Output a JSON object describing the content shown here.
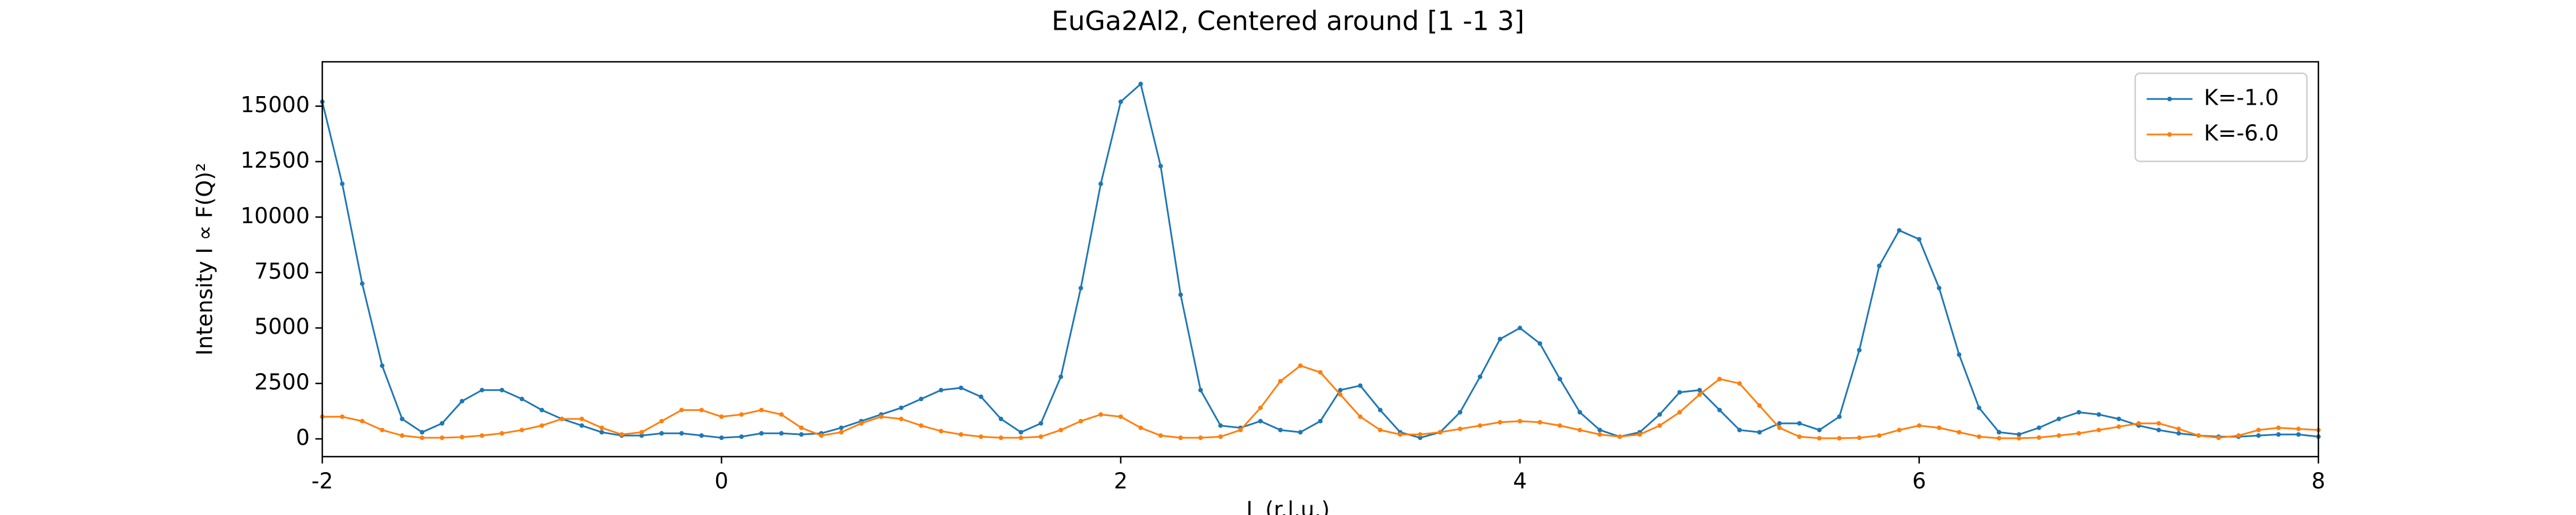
{
  "chart_data": {
    "type": "line",
    "title": "EuGa2Al2, Centered around [1 -1 3]",
    "x_label": "L (r.l.u.)",
    "y_label": "Intensity I ∝ F(Q)²",
    "x": [
      -2.0,
      -1.9,
      -1.8,
      -1.7,
      -1.6,
      -1.5,
      -1.4,
      -1.3,
      -1.2,
      -1.1,
      -1.0,
      -0.9,
      -0.8,
      -0.7,
      -0.6,
      -0.5,
      -0.4,
      -0.3,
      -0.2,
      -0.1,
      0.0,
      0.1,
      0.2,
      0.3,
      0.4,
      0.5,
      0.6,
      0.7,
      0.8,
      0.9,
      1.0,
      1.1,
      1.2,
      1.3,
      1.4,
      1.5,
      1.6,
      1.7,
      1.8,
      1.9,
      2.0,
      2.1,
      2.2,
      2.3,
      2.4,
      2.5,
      2.6,
      2.7,
      2.8,
      2.9,
      3.0,
      3.1,
      3.2,
      3.3,
      3.4,
      3.5,
      3.6,
      3.7,
      3.8,
      3.9,
      4.0,
      4.1,
      4.2,
      4.3,
      4.4,
      4.5,
      4.6,
      4.7,
      4.8,
      4.9,
      5.0,
      5.1,
      5.2,
      5.3,
      5.4,
      5.5,
      5.6,
      5.7,
      5.8,
      5.9,
      6.0,
      6.1,
      6.2,
      6.3,
      6.4,
      6.5,
      6.6,
      6.7,
      6.8,
      6.9,
      7.0,
      7.1,
      7.2,
      7.3,
      7.4,
      7.5,
      7.6,
      7.7,
      7.8,
      7.9,
      8.0
    ],
    "series": [
      {
        "name": "K=-1.0",
        "color": "#1f77b4",
        "values": [
          15200,
          11500,
          7000,
          3300,
          900,
          300,
          700,
          1700,
          2200,
          2200,
          1800,
          1300,
          900,
          600,
          300,
          150,
          150,
          250,
          250,
          150,
          50,
          100,
          250,
          250,
          200,
          250,
          500,
          800,
          1100,
          1400,
          1800,
          2200,
          2300,
          1900,
          900,
          300,
          700,
          2800,
          6800,
          11500,
          15200,
          16000,
          12300,
          6500,
          2200,
          600,
          500,
          800,
          400,
          300,
          800,
          2200,
          2400,
          1300,
          300,
          50,
          300,
          1200,
          2800,
          4500,
          5000,
          4300,
          2700,
          1200,
          400,
          100,
          300,
          1100,
          2100,
          2200,
          1300,
          400,
          300,
          700,
          700,
          400,
          1000,
          4000,
          7800,
          9400,
          9000,
          6800,
          3800,
          1400,
          300,
          200,
          500,
          900,
          1200,
          1100,
          900,
          600,
          400,
          250,
          150,
          100,
          100,
          150,
          200,
          200,
          100
        ]
      },
      {
        "name": "K=-6.0",
        "color": "#ff7f0e",
        "values": [
          1000,
          1000,
          800,
          400,
          150,
          50,
          50,
          80,
          150,
          250,
          400,
          600,
          900,
          900,
          500,
          200,
          300,
          800,
          1300,
          1300,
          1000,
          1100,
          1300,
          1100,
          500,
          150,
          300,
          700,
          1000,
          900,
          600,
          350,
          200,
          100,
          50,
          50,
          100,
          400,
          800,
          1100,
          1000,
          500,
          150,
          50,
          50,
          100,
          400,
          1400,
          2600,
          3300,
          3000,
          2000,
          1000,
          400,
          200,
          200,
          300,
          450,
          600,
          750,
          800,
          750,
          600,
          400,
          200,
          100,
          200,
          600,
          1200,
          2000,
          2700,
          2500,
          1500,
          500,
          100,
          30,
          30,
          50,
          150,
          400,
          600,
          500,
          300,
          100,
          30,
          30,
          60,
          150,
          250,
          400,
          550,
          700,
          700,
          450,
          150,
          50,
          150,
          400,
          500,
          450,
          400
        ]
      }
    ],
    "xlim": [
      -2,
      8
    ],
    "xticks": [
      -2,
      0,
      2,
      4,
      6,
      8
    ],
    "ylim": [
      -800,
      17000
    ],
    "yticks": [
      0,
      2500,
      5000,
      7500,
      10000,
      12500,
      15000
    ],
    "grid": false,
    "legend": "upper right"
  }
}
